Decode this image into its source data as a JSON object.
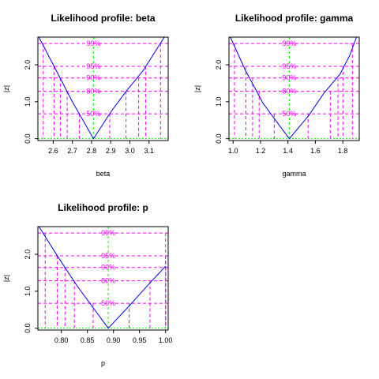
{
  "figure": {
    "background": "#ffffff"
  },
  "colors": {
    "curve": "#0000ff",
    "confidence": "#ff00ff",
    "center": "#00ff00",
    "axis": "#000000"
  },
  "chart_data": [
    {
      "type": "line",
      "title": "Likelihood profile: beta",
      "xlabel": "beta",
      "ylabel": "|z|",
      "xlim": [
        2.52,
        3.2
      ],
      "ylim": [
        -0.05,
        2.75
      ],
      "xticks": [
        {
          "v": 2.6,
          "label": "2.6"
        },
        {
          "v": 2.7,
          "label": "2.7"
        },
        {
          "v": 2.8,
          "label": "2.8"
        },
        {
          "v": 2.9,
          "label": "2.9"
        },
        {
          "v": 3.0,
          "label": "3.0"
        },
        {
          "v": 3.1,
          "label": "3.1"
        }
      ],
      "yticks": [
        {
          "v": 0,
          "label": "0.0"
        },
        {
          "v": 1,
          "label": "1.0"
        },
        {
          "v": 2,
          "label": "2.0"
        }
      ],
      "center": 2.81,
      "curve": [
        [
          2.525,
          2.75
        ],
        [
          2.62,
          1.8
        ],
        [
          2.7,
          1.0
        ],
        [
          2.81,
          0.0
        ],
        [
          2.9,
          0.72
        ],
        [
          2.98,
          1.28
        ],
        [
          3.07,
          1.85
        ],
        [
          3.14,
          2.42
        ],
        [
          3.18,
          2.75
        ]
      ],
      "levels": [
        {
          "label": "99%",
          "z": 2.576,
          "lo": 2.548,
          "hi": 3.16
        },
        {
          "label": "95%",
          "z": 1.96,
          "lo": 2.604,
          "hi": 3.083
        },
        {
          "label": "90%",
          "z": 1.645,
          "lo": 2.637,
          "hi": 3.046
        },
        {
          "label": "80%",
          "z": 1.282,
          "lo": 2.673,
          "hi": 2.98
        },
        {
          "label": "50%",
          "z": 0.674,
          "lo": 2.736,
          "hi": 2.895
        }
      ]
    },
    {
      "type": "line",
      "title": "Likelihood profile: gamma",
      "xlabel": "gamma",
      "ylabel": "|z|",
      "xlim": [
        0.97,
        1.92
      ],
      "ylim": [
        -0.05,
        2.75
      ],
      "xticks": [
        {
          "v": 1.0,
          "label": "1.0"
        },
        {
          "v": 1.2,
          "label": "1.2"
        },
        {
          "v": 1.4,
          "label": "1.4"
        },
        {
          "v": 1.6,
          "label": "1.6"
        },
        {
          "v": 1.8,
          "label": "1.8"
        }
      ],
      "yticks": [
        {
          "v": 0,
          "label": "0.0"
        },
        {
          "v": 1,
          "label": "1.0"
        },
        {
          "v": 2,
          "label": "2.0"
        }
      ],
      "center": 1.41,
      "curve": [
        [
          0.98,
          2.75
        ],
        [
          1.09,
          1.85
        ],
        [
          1.22,
          0.95
        ],
        [
          1.41,
          0.0
        ],
        [
          1.55,
          0.62
        ],
        [
          1.66,
          1.22
        ],
        [
          1.78,
          1.75
        ],
        [
          1.85,
          2.25
        ],
        [
          1.9,
          2.75
        ]
      ],
      "levels": [
        {
          "label": "99%",
          "z": 2.576,
          "lo": 1.01,
          "hi": 1.87
        },
        {
          "label": "95%",
          "z": 1.96,
          "lo": 1.093,
          "hi": 1.801
        },
        {
          "label": "90%",
          "z": 1.645,
          "lo": 1.142,
          "hi": 1.765
        },
        {
          "label": "80%",
          "z": 1.282,
          "lo": 1.19,
          "hi": 1.709
        },
        {
          "label": "50%",
          "z": 0.674,
          "lo": 1.3,
          "hi": 1.547
        }
      ]
    },
    {
      "type": "line",
      "title": "Likelihood profile: p",
      "xlabel": "p",
      "ylabel": "|z|",
      "xlim": [
        0.755,
        1.005
      ],
      "ylim": [
        -0.05,
        2.75
      ],
      "xticks": [
        {
          "v": 0.8,
          "label": "0.80"
        },
        {
          "v": 0.85,
          "label": "0.85"
        },
        {
          "v": 0.9,
          "label": "0.90"
        },
        {
          "v": 0.95,
          "label": "0.95"
        },
        {
          "v": 1.0,
          "label": "1.00"
        }
      ],
      "yticks": [
        {
          "v": 0,
          "label": "0.0"
        },
        {
          "v": 1,
          "label": "1.0"
        },
        {
          "v": 2,
          "label": "2.0"
        }
      ],
      "center": 0.89,
      "curve": [
        [
          0.757,
          2.75
        ],
        [
          0.795,
          1.9
        ],
        [
          0.83,
          1.15
        ],
        [
          0.89,
          0.0
        ],
        [
          0.93,
          0.6
        ],
        [
          0.965,
          1.15
        ],
        [
          1.0,
          1.68
        ]
      ],
      "levels": [
        {
          "label": "99%",
          "z": 2.576,
          "lo": 0.769,
          "hi": 1.0
        },
        {
          "label": "95%",
          "z": 1.96,
          "lo": 0.792,
          "hi": 1.0
        },
        {
          "label": "90%",
          "z": 1.645,
          "lo": 0.807,
          "hi": 1.0
        },
        {
          "label": "80%",
          "z": 1.282,
          "lo": 0.825,
          "hi": 0.97
        },
        {
          "label": "50%",
          "z": 0.674,
          "lo": 0.861,
          "hi": 0.93
        }
      ]
    }
  ]
}
